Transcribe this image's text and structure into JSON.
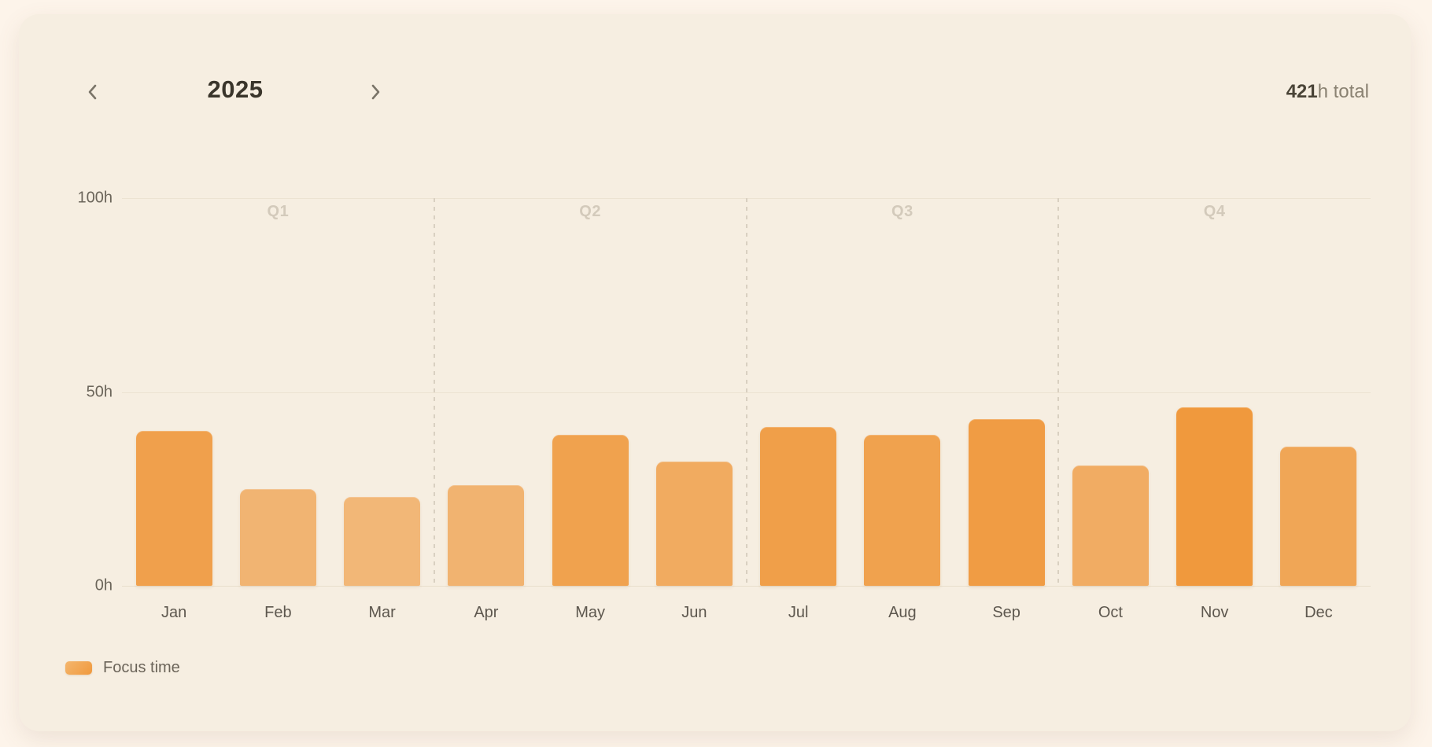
{
  "header": {
    "year": "2025",
    "prev_icon": "chevron-left",
    "next_icon": "chevron-right"
  },
  "summary": {
    "total_value": "421",
    "total_suffix": "h total"
  },
  "legend": {
    "label": "Focus time"
  },
  "chart_data": {
    "type": "bar",
    "title": "2025",
    "series_name": "Focus time",
    "categories": [
      "Jan",
      "Feb",
      "Mar",
      "Apr",
      "May",
      "Jun",
      "Jul",
      "Aug",
      "Sep",
      "Oct",
      "Nov",
      "Dec"
    ],
    "values": [
      40,
      25,
      23,
      26,
      39,
      32,
      41,
      39,
      43,
      31,
      46,
      36
    ],
    "total_hours": 421,
    "unit": "h",
    "ylim": [
      0,
      100
    ],
    "yticks": [
      {
        "value": 0,
        "label": "0h"
      },
      {
        "value": 50,
        "label": "50h"
      },
      {
        "value": 100,
        "label": "100h"
      }
    ],
    "quarters": [
      "Q1",
      "Q2",
      "Q3",
      "Q4"
    ],
    "bar_color": "#f0993d",
    "bar_color_light_blend_bg": "#f6eee1",
    "grid": true,
    "legend_position": "bottom-left"
  }
}
